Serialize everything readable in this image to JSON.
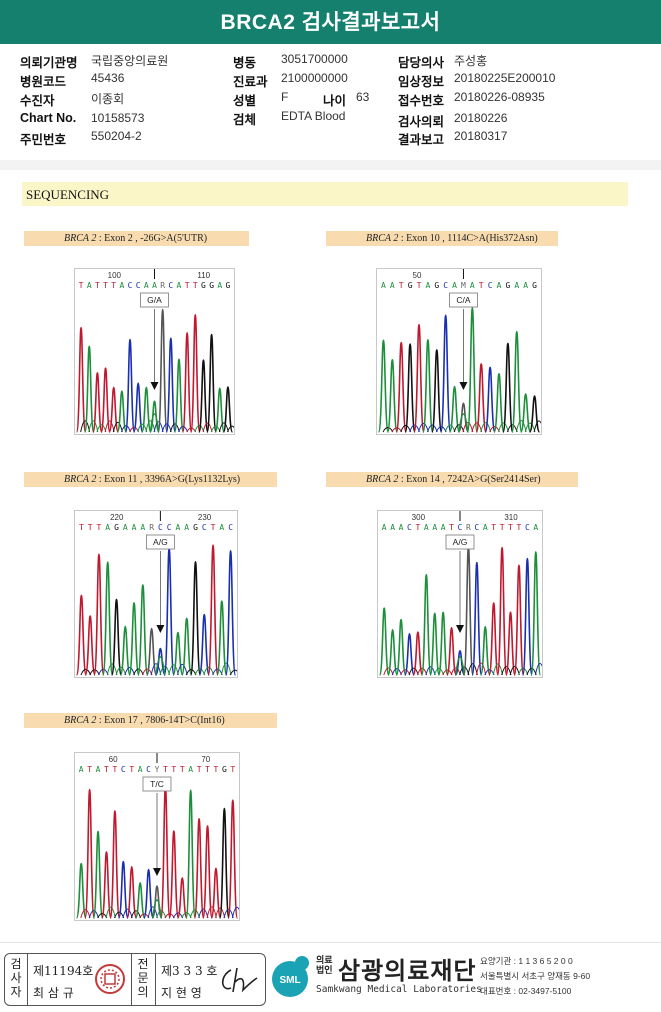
{
  "report": {
    "title": "BRCA2 검사결과보고서"
  },
  "patient": {
    "col1": [
      {
        "label": "의뢰기관명",
        "value": "국립중앙의료원"
      },
      {
        "label": "병원코드",
        "value": "45436"
      },
      {
        "label": "수진자",
        "value": "이종회"
      },
      {
        "label": "Chart No.",
        "value": "10158573"
      },
      {
        "label": "주민번호",
        "value": "550204-2"
      }
    ],
    "col2": [
      {
        "label": "병동",
        "value": "3051700000"
      },
      {
        "label": "진료과",
        "value": "2100000000"
      },
      {
        "label": "성별",
        "value": "F"
      },
      {
        "label": "검체",
        "value": "EDTA Blood"
      }
    ],
    "age": {
      "label": "나이",
      "value": "63"
    },
    "col3": [
      {
        "label": "담당의사",
        "value": "주성홍"
      },
      {
        "label": "임상정보",
        "value": "20180225E200010"
      },
      {
        "label": "접수번호",
        "value": "20180226-08935"
      },
      {
        "label": "검사의뢰",
        "value": "20180226"
      },
      {
        "label": "결과보고",
        "value": "20180317"
      }
    ]
  },
  "section": {
    "title": "SEQUENCING"
  },
  "panels": [
    {
      "gene": "BRCA 2",
      "desc": ": Exon 2 , -26G>A(5'UTR)",
      "seq": "TATTTACCAARCATTGGAG",
      "pos_left": "100",
      "pos_right": "110",
      "call": "G/A"
    },
    {
      "gene": "BRCA 2",
      "desc": ": Exon 10 , 1114C>A(His372Asn)",
      "seq": "AATGTAGCAMATCAGAAG",
      "pos_left": "50",
      "pos_right": "",
      "call": "C/A"
    },
    {
      "gene": "BRCA 2",
      "desc": ": Exon 11 , 3396A>G(Lys1132Lys)",
      "seq": "TTTAGAAARCCAAGCTAC",
      "pos_left": "220",
      "pos_right": "230",
      "call": "A/G"
    },
    {
      "gene": "BRCA 2",
      "desc": ": Exon 14 , 7242A>G(Ser2414Ser)",
      "seq": "AAACTAAATCRCATTTTCA",
      "pos_left": "300",
      "pos_right": "310",
      "call": "A/G"
    },
    {
      "gene": "BRCA 2",
      "desc": ": Exon 17 , 7806-14T>C(Int16)",
      "seq": "ATATTCTACYTTTATTTGT",
      "pos_left": "60",
      "pos_right": "70",
      "call": "T/C"
    }
  ],
  "footer": {
    "exam_label": "검사자",
    "exam_no": "제11194호",
    "exam_name": "최 삼 규",
    "spec_label": "전문의",
    "spec_no": "제3 3 3 호",
    "spec_name": "지 현 영",
    "org_prefix": "의료법인",
    "org_name": "삼광의료재단",
    "org_en": "Samkwang Medical Laboratories",
    "logo_text": "SML",
    "contact1": "요양기관 : 1 1 3 6 5 2 0 0",
    "contact2": "서울특별시 서초구 양재동 9-60",
    "contact3": "대표번호 : 02-3497-5100"
  },
  "colors": {
    "header": "#15806e",
    "band": "#fbf6c8",
    "label_band": "#f8dcb0",
    "A": "#1d8f3a",
    "C": "#1a2fb0",
    "G": "#111111",
    "T": "#c0182e"
  }
}
